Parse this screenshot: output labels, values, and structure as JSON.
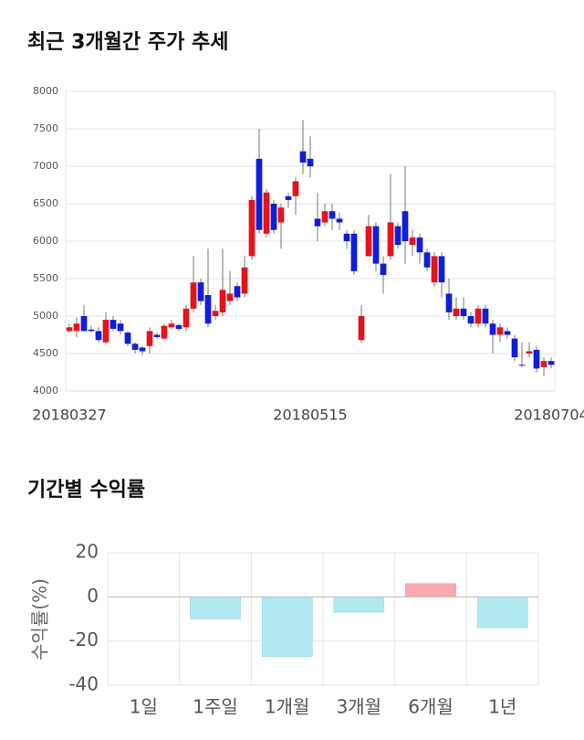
{
  "chart_data": [
    {
      "type": "candlestick",
      "title": "최근 3개월간 주가 추세",
      "categories": [
        "20180327",
        null,
        null,
        null,
        null,
        null,
        null,
        null,
        null,
        null,
        null,
        null,
        null,
        null,
        null,
        null,
        null,
        null,
        null,
        null,
        null,
        null,
        null,
        null,
        null,
        null,
        null,
        null,
        null,
        null,
        null,
        null,
        null,
        "20180515",
        null,
        null,
        null,
        null,
        null,
        null,
        null,
        null,
        null,
        null,
        null,
        null,
        null,
        null,
        null,
        null,
        null,
        null,
        null,
        null,
        null,
        null,
        null,
        null,
        null,
        null,
        null,
        null,
        null,
        null,
        null,
        null,
        "20180704"
      ],
      "open": [
        4800,
        4800,
        5000,
        4820,
        4800,
        4650,
        4950,
        4900,
        4780,
        4630,
        4580,
        4600,
        4750,
        4700,
        4850,
        4880,
        4850,
        5100,
        5450,
        5280,
        5000,
        5050,
        5200,
        5400,
        5300,
        5800,
        7100,
        6100,
        6500,
        6250,
        6600,
        6600,
        7200,
        7100,
        6300,
        6250,
        6400,
        6300,
        6100,
        6100,
        4680,
        5800,
        6200,
        5700,
        5800,
        6200,
        6400,
        5950,
        6050,
        5850,
        5450,
        5800,
        5300,
        5000,
        5100,
        5000,
        4900,
        5100,
        4900,
        4750,
        4800,
        4700,
        4350,
        4500,
        4550,
        4320,
        4400
      ],
      "high": [
        4900,
        4980,
        5150,
        4870,
        4850,
        5050,
        5000,
        4950,
        4800,
        4650,
        4600,
        4850,
        4780,
        4900,
        4950,
        4900,
        5150,
        5800,
        5500,
        5900,
        5150,
        5900,
        5600,
        5450,
        5800,
        6600,
        7500,
        6700,
        6550,
        6500,
        6650,
        6850,
        7620,
        7400,
        6650,
        6500,
        6500,
        6380,
        6150,
        6150,
        5150,
        6350,
        6250,
        5800,
        6900,
        6250,
        7000,
        6150,
        6100,
        5900,
        5850,
        5850,
        5500,
        5250,
        5250,
        5050,
        5150,
        5150,
        4950,
        4900,
        4850,
        4750,
        4650,
        4650,
        4600,
        4450,
        4450
      ],
      "low": [
        4780,
        4720,
        4800,
        4780,
        4650,
        4630,
        4800,
        4750,
        4600,
        4500,
        4480,
        4500,
        4700,
        4680,
        4820,
        4800,
        4800,
        5050,
        5150,
        4850,
        4950,
        5000,
        5150,
        5200,
        5250,
        5750,
        6100,
        6050,
        6100,
        5900,
        6450,
        6350,
        6900,
        6850,
        6000,
        6200,
        6150,
        6150,
        5900,
        5550,
        4650,
        5800,
        5600,
        5300,
        5750,
        5900,
        5700,
        5800,
        5700,
        5600,
        5400,
        5250,
        4950,
        4950,
        4950,
        4850,
        4850,
        4850,
        4500,
        4650,
        4700,
        4400,
        4320,
        4450,
        4250,
        4200,
        4300
      ],
      "close": [
        4850,
        4900,
        4800,
        4800,
        4680,
        4950,
        4830,
        4800,
        4630,
        4550,
        4530,
        4800,
        4720,
        4870,
        4900,
        4830,
        5100,
        5450,
        5200,
        4900,
        5070,
        5350,
        5300,
        5250,
        5650,
        6550,
        6150,
        6650,
        6150,
        6450,
        6550,
        6800,
        7050,
        7000,
        6200,
        6400,
        6300,
        6250,
        6000,
        5600,
        5000,
        6200,
        5700,
        5550,
        6250,
        5950,
        6000,
        6050,
        5850,
        5650,
        5800,
        5450,
        5050,
        5100,
        5000,
        4900,
        5100,
        4900,
        4750,
        4850,
        4750,
        4450,
        4340,
        4530,
        4300,
        4400,
        4350
      ],
      "up_color": "#e3141b",
      "down_color": "#0f1ed8",
      "ylim": [
        4000,
        8000
      ],
      "yticks": [
        4000,
        4500,
        5000,
        5500,
        6000,
        6500,
        7000,
        7500,
        8000
      ],
      "grid": true
    },
    {
      "type": "bar",
      "title": "기간별 수익률",
      "ylabel": "수익률(%)",
      "categories": [
        "1일",
        "1주일",
        "1개월",
        "3개월",
        "6개월",
        "1년"
      ],
      "values": [
        0,
        -10,
        -27,
        -7,
        6,
        -14
      ],
      "positive_color": "#f9a9b0",
      "negative_color": "#b1e8f2",
      "ylim": [
        -40,
        20
      ],
      "yticks": [
        -40,
        -20,
        0,
        20
      ],
      "grid": true
    }
  ]
}
